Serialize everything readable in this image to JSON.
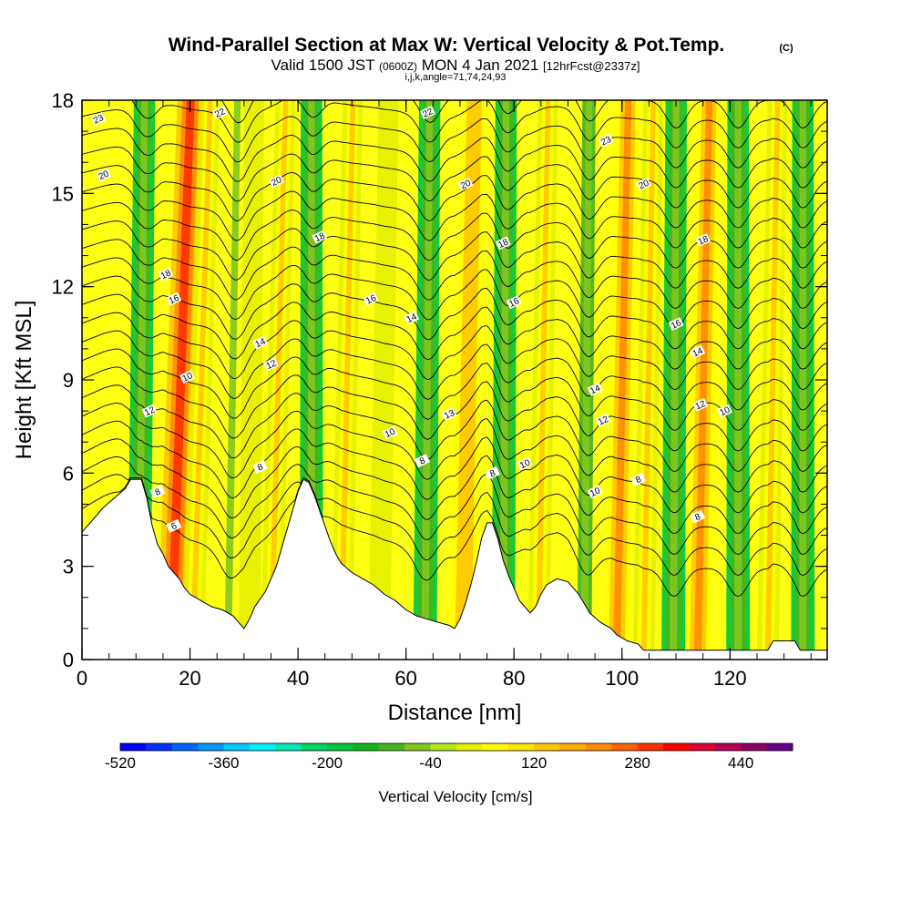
{
  "title": {
    "main": "Wind-Parallel Section at Max W: Vertical Velocity & Pot.Temp.",
    "copyright": "(C)",
    "valid_prefix": "Valid 1500 JST",
    "valid_utc": "(0600Z)",
    "valid_date": "MON 4 Jan 2021",
    "forecast": "[12hrFcst@2337z]",
    "indices": "i,j,k,angle=71,74,24,93"
  },
  "chart_data": {
    "type": "heatmap",
    "xlabel": "Distance [nm]",
    "ylabel": "Height [Kft MSL]",
    "xlim": [
      0,
      138
    ],
    "ylim": [
      0,
      18
    ],
    "x_ticks": [
      "0",
      "20",
      "40",
      "60",
      "80",
      "100",
      "120"
    ],
    "x_tick_values": [
      0,
      20,
      40,
      60,
      80,
      100,
      120
    ],
    "y_ticks": [
      "0",
      "3",
      "6",
      "9",
      "12",
      "15",
      "18"
    ],
    "y_tick_values": [
      0,
      3,
      6,
      9,
      12,
      15,
      18
    ],
    "grid": false,
    "colorbar": {
      "title": "Vertical Velocity [cm/s]",
      "tick_labels": [
        "-520",
        "-360",
        "-200",
        "-40",
        "120",
        "280",
        "440"
      ],
      "tick_values": [
        -520,
        -360,
        -200,
        -40,
        120,
        280,
        440
      ],
      "range": [
        -520,
        520
      ],
      "colors": [
        "#0000ff",
        "#0030ff",
        "#0064ff",
        "#0096ff",
        "#00c8ff",
        "#00f0ff",
        "#00e6b4",
        "#00d264",
        "#00c83c",
        "#14b41e",
        "#46b41e",
        "#82c81e",
        "#b4e61e",
        "#e6f000",
        "#ffff00",
        "#ffe600",
        "#ffc800",
        "#ffaa00",
        "#ff8c00",
        "#ff6400",
        "#ff3200",
        "#ff0000",
        "#dc0032",
        "#b40050",
        "#8c0064",
        "#64008c"
      ]
    },
    "terrain_kft": [
      [
        0,
        4.1
      ],
      [
        2,
        4.5
      ],
      [
        4,
        4.9
      ],
      [
        6,
        5.2
      ],
      [
        8,
        5.5
      ],
      [
        9,
        5.8
      ],
      [
        11,
        5.8
      ],
      [
        12,
        5.2
      ],
      [
        13,
        4.3
      ],
      [
        14,
        3.7
      ],
      [
        15,
        3.4
      ],
      [
        16,
        3.0
      ],
      [
        17,
        2.8
      ],
      [
        18,
        2.6
      ],
      [
        19,
        2.3
      ],
      [
        20,
        2.1
      ],
      [
        22,
        1.9
      ],
      [
        24,
        1.7
      ],
      [
        26,
        1.6
      ],
      [
        28,
        1.4
      ],
      [
        29,
        1.2
      ],
      [
        30,
        1.0
      ],
      [
        31,
        1.3
      ],
      [
        32,
        1.7
      ],
      [
        34,
        2.2
      ],
      [
        36,
        3.0
      ],
      [
        37,
        3.6
      ],
      [
        38,
        4.2
      ],
      [
        39,
        4.8
      ],
      [
        40,
        5.4
      ],
      [
        41,
        5.8
      ],
      [
        42,
        5.7
      ],
      [
        43,
        5.3
      ],
      [
        44,
        4.8
      ],
      [
        45,
        4.3
      ],
      [
        46,
        3.8
      ],
      [
        47,
        3.4
      ],
      [
        48,
        3.1
      ],
      [
        50,
        2.8
      ],
      [
        52,
        2.6
      ],
      [
        54,
        2.4
      ],
      [
        56,
        2.1
      ],
      [
        58,
        1.9
      ],
      [
        60,
        1.6
      ],
      [
        62,
        1.4
      ],
      [
        64,
        1.3
      ],
      [
        66,
        1.2
      ],
      [
        68,
        1.1
      ],
      [
        69,
        1.0
      ],
      [
        70,
        1.3
      ],
      [
        71,
        1.8
      ],
      [
        72,
        2.4
      ],
      [
        73,
        3.1
      ],
      [
        74,
        3.9
      ],
      [
        75,
        4.4
      ],
      [
        76,
        4.4
      ],
      [
        77,
        3.9
      ],
      [
        78,
        3.2
      ],
      [
        79,
        2.7
      ],
      [
        80,
        2.3
      ],
      [
        81,
        1.9
      ],
      [
        82,
        1.7
      ],
      [
        83,
        1.5
      ],
      [
        84,
        1.7
      ],
      [
        85,
        2.1
      ],
      [
        86,
        2.4
      ],
      [
        88,
        2.6
      ],
      [
        90,
        2.5
      ],
      [
        92,
        2.1
      ],
      [
        93,
        1.8
      ],
      [
        94,
        1.5
      ],
      [
        96,
        1.2
      ],
      [
        98,
        1.0
      ],
      [
        99,
        0.8
      ],
      [
        101,
        0.6
      ],
      [
        103,
        0.5
      ],
      [
        104,
        0.3
      ],
      [
        106,
        0.3
      ],
      [
        110,
        0.3
      ],
      [
        120,
        0.3
      ],
      [
        127,
        0.3
      ],
      [
        128,
        0.6
      ],
      [
        132,
        0.6
      ],
      [
        133,
        0.3
      ],
      [
        138,
        0.3
      ]
    ],
    "potential_temperature_labels": [
      "6",
      "8",
      "10",
      "12",
      "13",
      "14",
      "16",
      "18",
      "20",
      "22",
      "23"
    ],
    "wave_bands": [
      {
        "x": 10.5,
        "slope_nm_per_kft": 0.06,
        "w_cm_s": -200
      },
      {
        "x": 16.5,
        "slope_nm_per_kft": 0.2,
        "w_cm_s": 280
      },
      {
        "x": 20.5,
        "slope_nm_per_kft": 0.18,
        "w_cm_s": 120
      },
      {
        "x": 27.0,
        "slope_nm_per_kft": 0.1,
        "w_cm_s": -60
      },
      {
        "x": 31.0,
        "slope_nm_per_kft": 0.05,
        "w_cm_s": 20
      },
      {
        "x": 35.0,
        "slope_nm_per_kft": 0.15,
        "w_cm_s": 120
      },
      {
        "x": 42.5,
        "slope_nm_per_kft": 0.0,
        "w_cm_s": -200
      },
      {
        "x": 48.0,
        "slope_nm_per_kft": 0.12,
        "w_cm_s": 120
      },
      {
        "x": 55.0,
        "slope_nm_per_kft": 0.1,
        "w_cm_s": 40
      },
      {
        "x": 63.5,
        "slope_nm_per_kft": 0.05,
        "w_cm_s": -200
      },
      {
        "x": 70.5,
        "slope_nm_per_kft": 0.12,
        "w_cm_s": 160
      },
      {
        "x": 78.0,
        "slope_nm_per_kft": 0.03,
        "w_cm_s": -200
      },
      {
        "x": 84.5,
        "slope_nm_per_kft": 0.1,
        "w_cm_s": 120
      },
      {
        "x": 93.0,
        "slope_nm_per_kft": 0.05,
        "w_cm_s": -160
      },
      {
        "x": 99.0,
        "slope_nm_per_kft": 0.12,
        "w_cm_s": 200
      },
      {
        "x": 104.0,
        "slope_nm_per_kft": 0.1,
        "w_cm_s": 120
      },
      {
        "x": 109.5,
        "slope_nm_per_kft": 0.03,
        "w_cm_s": -200
      },
      {
        "x": 114.0,
        "slope_nm_per_kft": 0.12,
        "w_cm_s": 200
      },
      {
        "x": 121.5,
        "slope_nm_per_kft": 0.0,
        "w_cm_s": -200
      },
      {
        "x": 127.0,
        "slope_nm_per_kft": 0.1,
        "w_cm_s": 120
      },
      {
        "x": 133.5,
        "slope_nm_per_kft": 0.0,
        "w_cm_s": -200
      }
    ],
    "contour_labels": [
      {
        "text": "23",
        "x": 3,
        "y": 17.4
      },
      {
        "text": "20",
        "x": 4,
        "y": 15.6
      },
      {
        "text": "22",
        "x": 25.5,
        "y": 17.6
      },
      {
        "text": "20",
        "x": 36,
        "y": 15.4
      },
      {
        "text": "18",
        "x": 44,
        "y": 13.6
      },
      {
        "text": "18",
        "x": 15.5,
        "y": 12.4
      },
      {
        "text": "16",
        "x": 17,
        "y": 11.6
      },
      {
        "text": "16",
        "x": 53.5,
        "y": 11.6
      },
      {
        "text": "14",
        "x": 33,
        "y": 10.2
      },
      {
        "text": "12",
        "x": 35,
        "y": 9.5
      },
      {
        "text": "10",
        "x": 19.5,
        "y": 9.1
      },
      {
        "text": "12",
        "x": 12.5,
        "y": 8.0
      },
      {
        "text": "8",
        "x": 14,
        "y": 5.4
      },
      {
        "text": "6",
        "x": 17,
        "y": 4.3
      },
      {
        "text": "8",
        "x": 33,
        "y": 6.2
      },
      {
        "text": "22",
        "x": 64,
        "y": 17.6
      },
      {
        "text": "20",
        "x": 71,
        "y": 15.3
      },
      {
        "text": "18",
        "x": 78,
        "y": 13.4
      },
      {
        "text": "14",
        "x": 61,
        "y": 11.0
      },
      {
        "text": "16",
        "x": 80,
        "y": 11.5
      },
      {
        "text": "13",
        "x": 68,
        "y": 7.9
      },
      {
        "text": "10",
        "x": 57,
        "y": 7.3
      },
      {
        "text": "8",
        "x": 63,
        "y": 6.4
      },
      {
        "text": "8",
        "x": 76,
        "y": 6.0
      },
      {
        "text": "10",
        "x": 82,
        "y": 6.3
      },
      {
        "text": "23",
        "x": 97,
        "y": 16.7
      },
      {
        "text": "20",
        "x": 104,
        "y": 15.3
      },
      {
        "text": "18",
        "x": 115,
        "y": 13.5
      },
      {
        "text": "16",
        "x": 110,
        "y": 10.8
      },
      {
        "text": "14",
        "x": 114,
        "y": 9.9
      },
      {
        "text": "14",
        "x": 95,
        "y": 8.7
      },
      {
        "text": "12",
        "x": 96.5,
        "y": 7.7
      },
      {
        "text": "12",
        "x": 114.5,
        "y": 8.2
      },
      {
        "text": "10",
        "x": 119,
        "y": 8.0
      },
      {
        "text": "10",
        "x": 95,
        "y": 5.4
      },
      {
        "text": "8",
        "x": 103,
        "y": 5.8
      },
      {
        "text": "8",
        "x": 114,
        "y": 4.6
      }
    ]
  }
}
